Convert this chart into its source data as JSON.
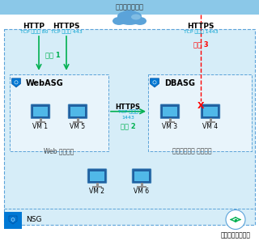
{
  "title": "インターネット",
  "internet_bar_color": "#8bc8e8",
  "nsg_box_color": "#d6edf8",
  "nsg_border_color": "#5ba3d9",
  "asg_box_color": "#e8f4fb",
  "arrow_green": "#00b050",
  "arrow_red": "#ff0000",
  "text_green": "#00b050",
  "text_cyan": "#00a0d0",
  "text_red": "#ff0000",
  "cloud_color": "#5ba3d9",
  "cloud_highlight": "#a8d8f0",
  "http_label": "HTTP",
  "https_label": "HTTPS",
  "tcp80": "TCP ポート 80",
  "tcp443": "TCP ポート 443",
  "tcp1443_label": "TCP ポート 1443",
  "rule1": "規則 1",
  "rule2": "規則 2",
  "rule3": "規則 3",
  "webasg_label": "WebASG",
  "dbasg_label": "DBASG",
  "nsg_label": "NSG",
  "vnet_label": "付想ネットワーク",
  "web_server_label": "Web サーバー",
  "db_server_label": "データベース サーバー",
  "vm1": "VM 1",
  "vm5": "VM 5",
  "vm3": "VM 3",
  "vm4": "VM 4",
  "vm2": "VM 2",
  "vm6": "VM 6",
  "https_mid": "HTTPS",
  "tcp1443_mid": "TCP ポート\n1443",
  "shield_blue": "#0078d4",
  "shield_bg": "#00a4ef",
  "monitor_dark": "#2060a0",
  "monitor_light": "#50b8e8",
  "monitor_stand": "#909090",
  "nsg_icon_bg": "#0078d4"
}
